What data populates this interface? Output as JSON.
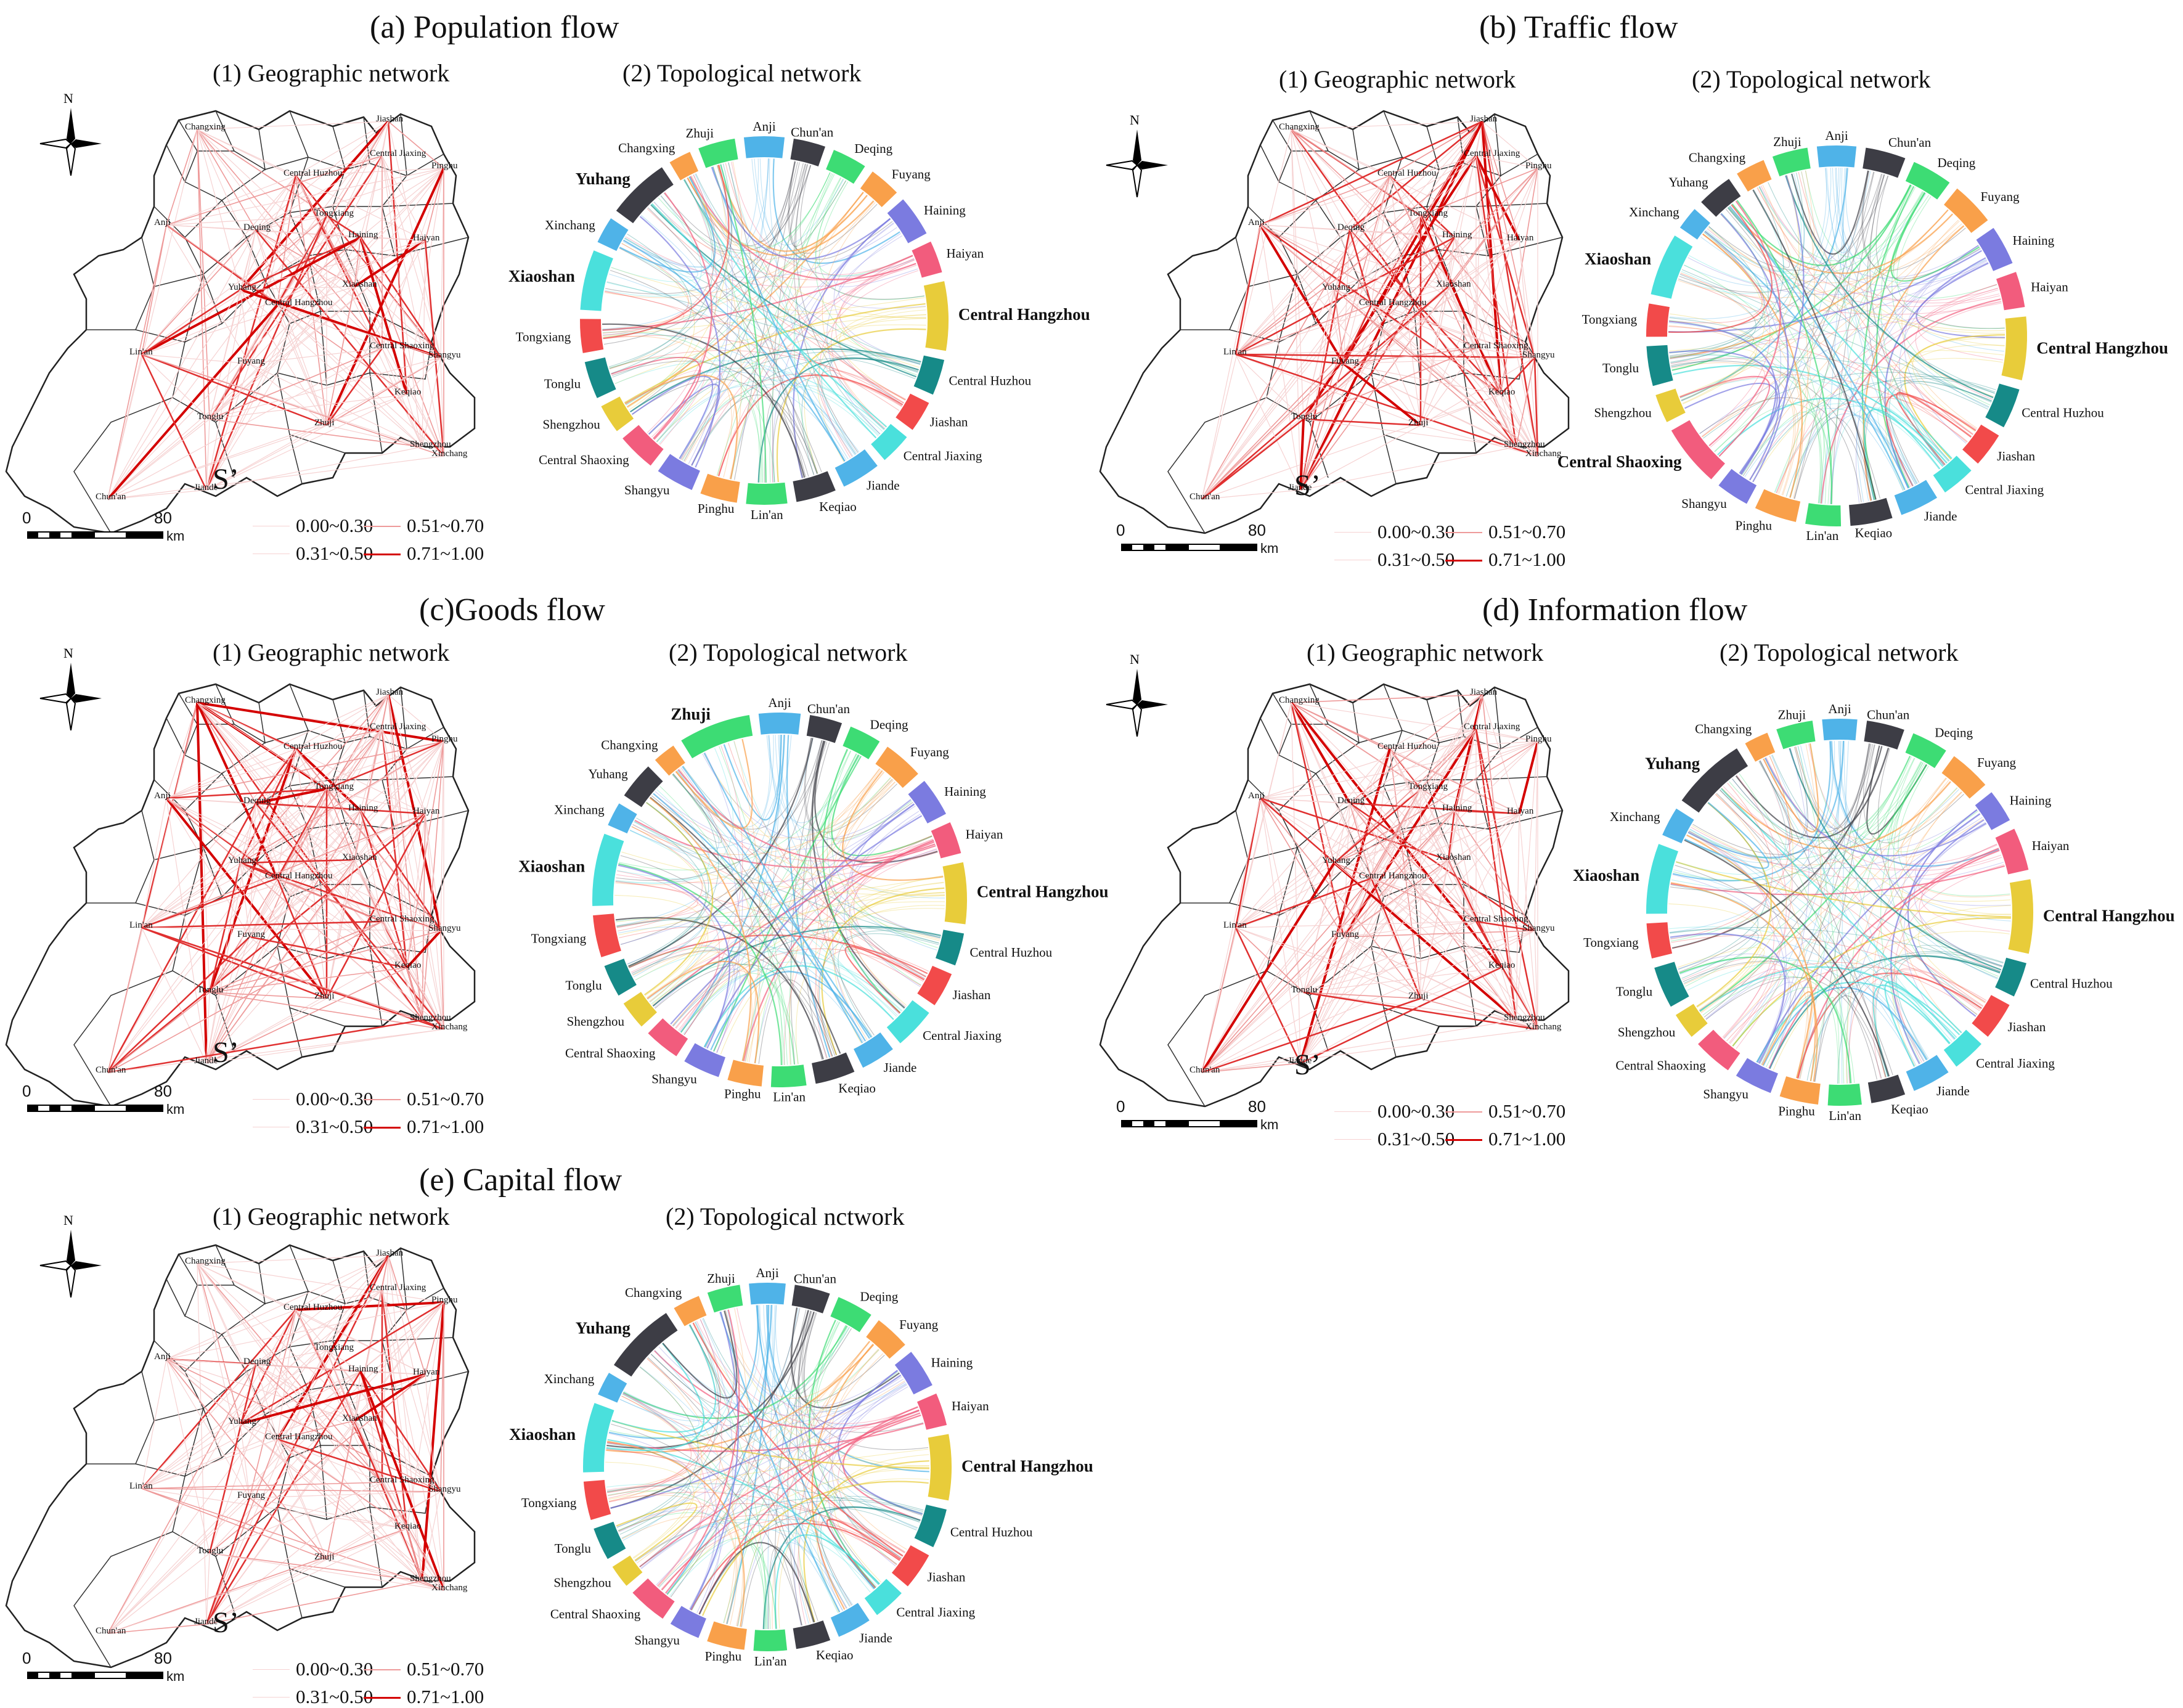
{
  "panels": [
    {
      "id": "a",
      "title": "(a) Population flow",
      "geo_title": "(1) Geographic network",
      "topo_title": "(2) Topological network",
      "bold": [
        "Yuhang",
        "Xiaoshan",
        "Central Hangzhou"
      ]
    },
    {
      "id": "b",
      "title": "(b) Traffic flow",
      "geo_title": "(1) Geographic network",
      "topo_title": "(2) Topological network",
      "bold": [
        "Xiaoshan",
        "Central Hangzhou",
        "Central Shaoxing"
      ]
    },
    {
      "id": "c",
      "title": "(c)Goods flow",
      "geo_title": "(1) Geographic network",
      "topo_title": "(2) Topological network",
      "bold": [
        "Zhuji",
        "Xiaoshan",
        "Central Hangzhou"
      ]
    },
    {
      "id": "d",
      "title": "(d) Information flow",
      "geo_title": "(1) Geographic network",
      "topo_title": "(2) Topological network",
      "bold": [
        "Yuhang",
        "Xiaoshan",
        "Central Hangzhou"
      ]
    },
    {
      "id": "e",
      "title": "(e) Capital flow",
      "geo_title": "(1) Geographic network",
      "topo_title": "(2) Topological nctwork",
      "bold": [
        "Yuhang",
        "Xiaoshan",
        "Central Hangzhou"
      ]
    }
  ],
  "nodes": [
    "Anji",
    "Chun'an",
    "Deqing",
    "Fuyang",
    "Haining",
    "Haiyan",
    "Central Hangzhou",
    "Central Huzhou",
    "Jiashan",
    "Central Jiaxing",
    "Jiande",
    "Keqiao",
    "Lin'an",
    "Pinghu",
    "Shangyu",
    "Central Shaoxing",
    "Shengzhou",
    "Tonglu",
    "Tongxiang",
    "Xiaoshan",
    "Xinchang",
    "Yuhang",
    "Zhuji",
    "Changxing"
  ],
  "node_colors": [
    "#4fb3e8",
    "#3d3d45",
    "#3ddc74",
    "#f9a04a",
    "#7b7be0",
    "#f25c7d",
    "#e8cc3a",
    "#168a88",
    "#f24a4a",
    "#4ae0dc",
    "#4fb3e8",
    "#3d3d45",
    "#3ddc74",
    "#f9a04a",
    "#7b7be0",
    "#f25c7d",
    "#e8cc3a",
    "#168a88",
    "#f24a4a",
    "#4ae0dc",
    "#4fb3e8",
    "#3d3d45",
    "#3ddc74",
    "#f9a04a"
  ],
  "map_labels": [
    "Changxing",
    "Jiashan",
    "Central Huzhou",
    "Central Jiaxing",
    "Pinghu",
    "Anji",
    "Deqing",
    "Tongxiang",
    "Haining",
    "Haiyan",
    "Yuhang",
    "Xiaoshan",
    "Central Hangzhou",
    "Lin'an",
    "Fuyang",
    "Central Shaoxing",
    "Shangyu",
    "Keqiao",
    "Tonglu",
    "Zhuji",
    "Shengzhou",
    "Chun'an",
    "Jiande",
    "Xinchang"
  ],
  "legend": {
    "symbol": "S’",
    "ranges": [
      "0.00~0.30",
      "0.31~0.50",
      "0.51~0.70",
      "0.71~1.00"
    ]
  },
  "scalebar": {
    "start": "0",
    "end": "80",
    "unit": "km"
  },
  "compass": {
    "label": "N"
  },
  "colors": {
    "line_weak": "#f6d2d2",
    "line_mid": "#ee9a9a",
    "line_strong": "#e03030",
    "line_max": "#d40000"
  }
}
